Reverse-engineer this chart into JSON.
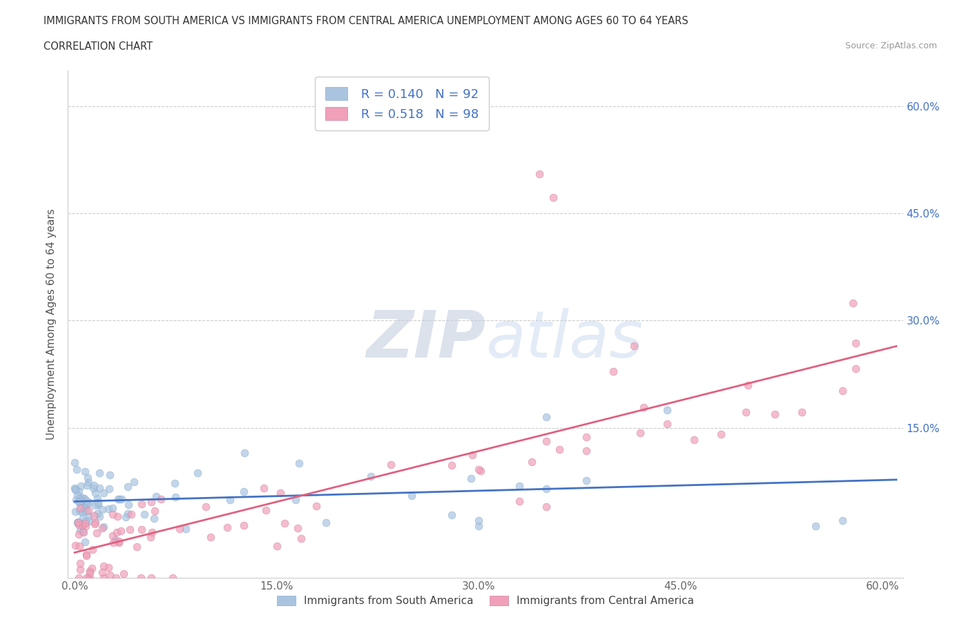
{
  "title_line1": "IMMIGRANTS FROM SOUTH AMERICA VS IMMIGRANTS FROM CENTRAL AMERICA UNEMPLOYMENT AMONG AGES 60 TO 64 YEARS",
  "title_line2": "CORRELATION CHART",
  "source_text": "Source: ZipAtlas.com",
  "ylabel": "Unemployment Among Ages 60 to 64 years",
  "xlim": [
    -0.005,
    0.615
  ],
  "ylim": [
    -0.06,
    0.65
  ],
  "xtick_vals": [
    0.0,
    0.15,
    0.3,
    0.45,
    0.6
  ],
  "xtick_labels": [
    "0.0%",
    "15.0%",
    "30.0%",
    "45.0%",
    "60.0%"
  ],
  "ytick_vals": [
    0.15,
    0.3,
    0.45,
    0.6
  ],
  "ytick_labels": [
    "15.0%",
    "30.0%",
    "45.0%",
    "60.0%"
  ],
  "R_south": 0.14,
  "N_south": 92,
  "R_central": 0.518,
  "N_central": 98,
  "color_south": "#aac4e0",
  "color_central": "#f0a0b8",
  "line_color_south": "#4472c4",
  "line_color_central": "#e06080",
  "scatter_alpha": 0.7,
  "scatter_size": 60,
  "watermark": "ZIPatlas",
  "watermark_color": "#d0d8e8",
  "background_color": "#ffffff",
  "grid_color": "#cccccc",
  "legend_text_color": "#4472c4",
  "right_axis_color": "#4472c4",
  "bottom_label_color": "#555555"
}
